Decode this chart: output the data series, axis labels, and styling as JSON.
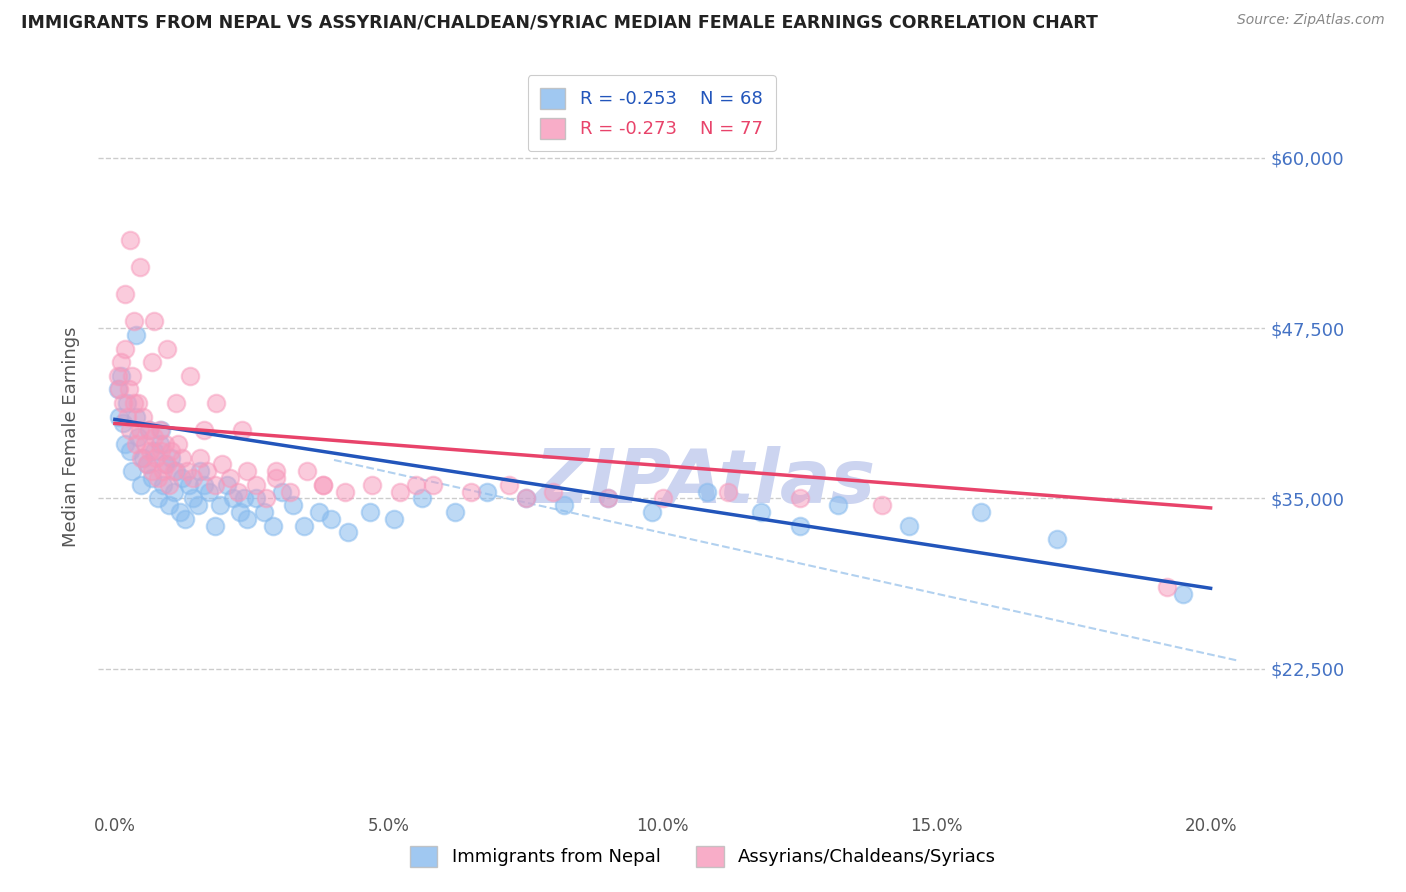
{
  "title": "IMMIGRANTS FROM NEPAL VS ASSYRIAN/CHALDEAN/SYRIAC MEDIAN FEMALE EARNINGS CORRELATION CHART",
  "source": "Source: ZipAtlas.com",
  "ylabel": "Median Female Earnings",
  "xlabel_ticks": [
    "0.0%",
    "5.0%",
    "10.0%",
    "15.0%",
    "20.0%"
  ],
  "xlabel_vals": [
    0.0,
    5.0,
    10.0,
    15.0,
    20.0
  ],
  "yticks_vals": [
    22500,
    35000,
    47500,
    60000
  ],
  "yticks_labels": [
    "$22,500",
    "$35,000",
    "$47,500",
    "$60,000"
  ],
  "ylim": [
    12000,
    67000
  ],
  "xlim": [
    -0.3,
    21.0
  ],
  "legend_blue_r": "R = -0.253",
  "legend_blue_n": "N = 68",
  "legend_pink_r": "R = -0.273",
  "legend_pink_n": "N = 77",
  "blue_scatter_color": "#88bbee",
  "pink_scatter_color": "#f799bb",
  "blue_line_color": "#2255bb",
  "pink_line_color": "#e8436a",
  "dash_line_color": "#aaccee",
  "title_color": "#222222",
  "source_color": "#888888",
  "ytick_color": "#4472C4",
  "xtick_color": "#555555",
  "ylabel_color": "#555555",
  "watermark_color": "#ccd4f0",
  "grid_color": "#cccccc",
  "background_color": "#ffffff",
  "blue_scatter_x": [
    0.15,
    0.18,
    0.22,
    0.28,
    0.32,
    0.38,
    0.42,
    0.48,
    0.52,
    0.58,
    0.62,
    0.68,
    0.72,
    0.78,
    0.82,
    0.88,
    0.92,
    0.98,
    1.02,
    1.08,
    1.12,
    1.18,
    1.22,
    1.28,
    1.35,
    1.42,
    1.52,
    1.62,
    1.72,
    1.82,
    1.92,
    2.05,
    2.15,
    2.28,
    2.42,
    2.58,
    2.72,
    2.88,
    3.05,
    3.25,
    3.45,
    3.72,
    3.95,
    4.25,
    4.65,
    5.1,
    5.6,
    6.2,
    6.8,
    7.5,
    8.2,
    9.0,
    9.8,
    10.8,
    11.8,
    12.5,
    13.2,
    14.5,
    15.8,
    17.2,
    0.05,
    0.08,
    0.12,
    0.38,
    0.85,
    1.55,
    2.35,
    19.5
  ],
  "blue_scatter_y": [
    40500,
    39000,
    42000,
    38500,
    37000,
    41000,
    39500,
    36000,
    38000,
    37500,
    40000,
    36500,
    38500,
    35000,
    39000,
    36000,
    37500,
    34500,
    38000,
    35500,
    37000,
    34000,
    36500,
    33500,
    36000,
    35000,
    34500,
    36000,
    35500,
    33000,
    34500,
    36000,
    35000,
    34000,
    33500,
    35000,
    34000,
    33000,
    35500,
    34500,
    33000,
    34000,
    33500,
    32500,
    34000,
    33500,
    35000,
    34000,
    35500,
    35000,
    34500,
    35000,
    34000,
    35500,
    34000,
    33000,
    34500,
    33000,
    34000,
    32000,
    43000,
    41000,
    44000,
    47000,
    40000,
    37000,
    35000,
    28000
  ],
  "pink_scatter_x": [
    0.05,
    0.08,
    0.12,
    0.15,
    0.18,
    0.22,
    0.25,
    0.28,
    0.32,
    0.35,
    0.38,
    0.42,
    0.45,
    0.48,
    0.52,
    0.55,
    0.58,
    0.62,
    0.65,
    0.68,
    0.72,
    0.75,
    0.78,
    0.82,
    0.85,
    0.88,
    0.92,
    0.95,
    0.98,
    1.02,
    1.08,
    1.15,
    1.22,
    1.32,
    1.42,
    1.55,
    1.68,
    1.82,
    1.95,
    2.1,
    2.25,
    2.42,
    2.58,
    2.75,
    2.95,
    3.2,
    3.5,
    3.8,
    4.2,
    4.7,
    5.2,
    5.8,
    6.5,
    7.2,
    8.0,
    9.0,
    10.0,
    11.2,
    12.5,
    14.0,
    0.18,
    0.35,
    0.68,
    1.12,
    1.62,
    0.28,
    0.45,
    0.72,
    0.95,
    1.38,
    1.85,
    2.32,
    2.95,
    3.8,
    5.5,
    7.5,
    19.2
  ],
  "pink_scatter_y": [
    44000,
    43000,
    45000,
    42000,
    46000,
    41000,
    43000,
    40000,
    44000,
    42000,
    39000,
    42000,
    40000,
    38000,
    41000,
    39000,
    37500,
    40000,
    38500,
    37000,
    39500,
    38000,
    36500,
    40000,
    38500,
    37000,
    39000,
    37500,
    36000,
    38500,
    37000,
    39000,
    38000,
    37000,
    36500,
    38000,
    37000,
    36000,
    37500,
    36500,
    35500,
    37000,
    36000,
    35000,
    36500,
    35500,
    37000,
    36000,
    35500,
    36000,
    35500,
    36000,
    35500,
    36000,
    35500,
    35000,
    35000,
    35500,
    35000,
    34500,
    50000,
    48000,
    45000,
    42000,
    40000,
    54000,
    52000,
    48000,
    46000,
    44000,
    42000,
    40000,
    37000,
    36000,
    36000,
    35000,
    28500
  ]
}
